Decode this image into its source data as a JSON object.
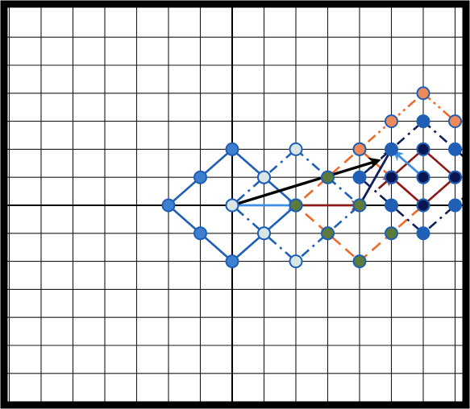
{
  "diagram": {
    "grid": {
      "cell_units": 1,
      "x_range": [
        -7,
        7.25
      ],
      "y_range": [
        -6.25,
        6.75
      ],
      "line_color": "#1a1a1a",
      "axis_color": "#000000",
      "frame_color": "#000000",
      "background": "#ffffff"
    },
    "squares": [
      {
        "name": "square-original",
        "center": [
          0,
          0
        ],
        "radius": 2,
        "line_style": "solid",
        "stroke": "#1f5fb5",
        "point_fill": "#3f7fd0",
        "point_edge": "#1f5fb5",
        "points": [
          [
            0,
            2
          ],
          [
            1,
            1
          ],
          [
            2,
            0
          ],
          [
            1,
            -1
          ],
          [
            0,
            -2
          ],
          [
            -1,
            -1
          ],
          [
            -2,
            0
          ],
          [
            -1,
            1
          ],
          [
            0,
            0
          ]
        ]
      },
      {
        "name": "square-translated-1",
        "center": [
          2,
          0
        ],
        "radius": 2,
        "line_style": "dash-dot",
        "stroke": "#1f5fb5",
        "point_fill": "#d9e6e6",
        "point_edge": "#1f5fb5",
        "points": [
          [
            2,
            2
          ],
          [
            3,
            1
          ],
          [
            4,
            0
          ],
          [
            3,
            -1
          ],
          [
            2,
            -2
          ],
          [
            1,
            -1
          ],
          [
            0,
            0
          ],
          [
            1,
            1
          ],
          [
            2,
            0
          ]
        ]
      },
      {
        "name": "square-translated-2",
        "center": [
          4,
          0
        ],
        "radius": 2,
        "line_style": "dash",
        "stroke": "#ee6a2a",
        "point_fill": "#5c7a3a",
        "point_edge": "#1f5fb5",
        "points": [
          [
            4,
            2
          ],
          [
            5,
            1
          ],
          [
            6,
            0
          ],
          [
            5,
            -1
          ],
          [
            4,
            -2
          ],
          [
            3,
            -1
          ],
          [
            2,
            0
          ],
          [
            3,
            1
          ],
          [
            4,
            0
          ]
        ]
      },
      {
        "name": "square-translated-3",
        "center": [
          6,
          1
        ],
        "radius": 2,
        "line_style": "dash-dot",
        "stroke": "#0f1f5a",
        "point_fill": "#1f5fb5",
        "point_edge": "#1f5fb5",
        "points": [
          [
            6,
            3
          ],
          [
            7,
            2
          ],
          [
            8,
            1
          ],
          [
            7,
            0
          ],
          [
            6,
            -1
          ],
          [
            5,
            0
          ],
          [
            4,
            1
          ],
          [
            5,
            2
          ],
          [
            6,
            1
          ]
        ]
      },
      {
        "name": "square-translated-4",
        "center": [
          6,
          2
        ],
        "radius": 2,
        "line_style": "dash-dot-dot",
        "stroke": "#ee6a2a",
        "point_fill": "#ee8a5a",
        "point_edge": "#1f5fb5",
        "points": [
          [
            6,
            4
          ],
          [
            7,
            3
          ],
          [
            8,
            2
          ],
          [
            7,
            1
          ],
          [
            6,
            0
          ],
          [
            5,
            1
          ],
          [
            4,
            2
          ],
          [
            5,
            3
          ],
          [
            6,
            2
          ]
        ]
      },
      {
        "name": "square-scaled",
        "center": [
          6,
          1
        ],
        "radius": 1,
        "line_style": "solid",
        "stroke": "#8b1a1a",
        "point_fill": "#0a1450",
        "point_edge": "#1f5fb5",
        "points": [
          [
            6,
            2
          ],
          [
            7,
            1
          ],
          [
            6,
            0
          ],
          [
            5,
            1
          ],
          [
            6,
            1
          ]
        ]
      }
    ],
    "arrows": [
      {
        "name": "arrow-light-blue",
        "from": [
          0,
          0
        ],
        "to": [
          2,
          0
        ],
        "color": "#3f8fe0"
      },
      {
        "name": "arrow-dark-red-1",
        "from": [
          2,
          0
        ],
        "to": [
          4,
          0
        ],
        "color": "#8b1a1a"
      },
      {
        "name": "arrow-dark-red-2",
        "from": [
          4.6,
          0.6
        ],
        "to": [
          5,
          1
        ],
        "color": "#8b1a1a"
      },
      {
        "name": "arrow-dark-navy",
        "from": [
          4,
          0
        ],
        "to": [
          5,
          2
        ],
        "color": "#0f1f5a"
      },
      {
        "name": "arrow-light-blue-2",
        "from": [
          6,
          1
        ],
        "to": [
          5.1,
          1.9
        ],
        "color": "#3f8fe0"
      },
      {
        "name": "arrow-black",
        "from": [
          0,
          0
        ],
        "to": [
          4.6,
          1.6
        ],
        "color": "#000000"
      }
    ]
  }
}
